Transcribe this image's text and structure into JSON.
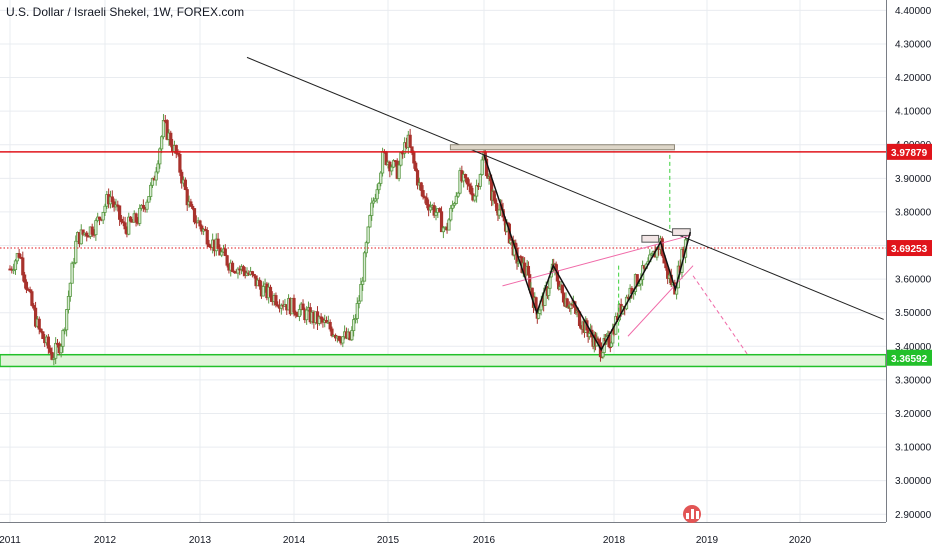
{
  "header": {
    "title": "U.S. Dollar / Israeli Shekel, 1W, FOREX.com"
  },
  "chart_data": {
    "type": "candlestick",
    "title": "U.S. Dollar / Israeli Shekel, 1W, FOREX.com",
    "x_ticks": [
      "2011",
      "2012",
      "2013",
      "2014",
      "2015",
      "2016",
      "2018",
      "2019",
      "2020"
    ],
    "y_ticks": [
      "2.90000",
      "3.00000",
      "3.10000",
      "3.20000",
      "3.30000",
      "3.40000",
      "3.50000",
      "3.60000",
      "3.70000",
      "3.80000",
      "3.90000",
      "4.00000",
      "4.10000",
      "4.20000",
      "4.30000",
      "4.40000"
    ],
    "ylim": [
      2.88,
      4.41
    ],
    "price_labels": [
      {
        "text": "3.97879",
        "value": 3.97879,
        "color": "#e0141b"
      },
      {
        "text": "3.69253",
        "value": 3.69253,
        "color": "#e0141b"
      },
      {
        "text": "3.36592",
        "value": 3.36592,
        "color": "#22c02a"
      }
    ],
    "price_path": [
      {
        "t": 2011.0,
        "v": 3.63
      },
      {
        "t": 2011.1,
        "v": 3.68
      },
      {
        "t": 2011.2,
        "v": 3.55
      },
      {
        "t": 2011.3,
        "v": 3.45
      },
      {
        "t": 2011.45,
        "v": 3.37
      },
      {
        "t": 2011.55,
        "v": 3.42
      },
      {
        "t": 2011.7,
        "v": 3.72
      },
      {
        "t": 2011.9,
        "v": 3.76
      },
      {
        "t": 2012.05,
        "v": 3.85
      },
      {
        "t": 2012.2,
        "v": 3.75
      },
      {
        "t": 2012.35,
        "v": 3.78
      },
      {
        "t": 2012.5,
        "v": 3.88
      },
      {
        "t": 2012.62,
        "v": 4.06
      },
      {
        "t": 2012.75,
        "v": 3.97
      },
      {
        "t": 2012.9,
        "v": 3.8
      },
      {
        "t": 2013.1,
        "v": 3.72
      },
      {
        "t": 2013.3,
        "v": 3.65
      },
      {
        "t": 2013.5,
        "v": 3.62
      },
      {
        "t": 2013.7,
        "v": 3.56
      },
      {
        "t": 2013.9,
        "v": 3.53
      },
      {
        "t": 2014.1,
        "v": 3.5
      },
      {
        "t": 2014.3,
        "v": 3.47
      },
      {
        "t": 2014.5,
        "v": 3.43
      },
      {
        "t": 2014.6,
        "v": 3.42
      },
      {
        "t": 2014.7,
        "v": 3.55
      },
      {
        "t": 2014.82,
        "v": 3.8
      },
      {
        "t": 2014.95,
        "v": 3.97
      },
      {
        "t": 2015.1,
        "v": 3.92
      },
      {
        "t": 2015.2,
        "v": 4.02
      },
      {
        "t": 2015.35,
        "v": 3.85
      },
      {
        "t": 2015.5,
        "v": 3.8
      },
      {
        "t": 2015.6,
        "v": 3.74
      },
      {
        "t": 2015.75,
        "v": 3.9
      },
      {
        "t": 2015.9,
        "v": 3.85
      },
      {
        "t": 2016.0,
        "v": 3.97
      },
      {
        "t": 2016.12,
        "v": 3.85
      },
      {
        "t": 2016.3,
        "v": 3.78
      },
      {
        "t": 2016.5,
        "v": 3.66
      },
      {
        "t": 2016.65,
        "v": 3.62
      },
      {
        "t": 2016.8,
        "v": 3.5
      },
      {
        "t": 2016.95,
        "v": 3.56
      },
      {
        "t": 2017.05,
        "v": 3.64
      },
      {
        "t": 2017.2,
        "v": 3.55
      },
      {
        "t": 2017.35,
        "v": 3.52
      },
      {
        "t": 2017.5,
        "v": 3.47
      },
      {
        "t": 2017.65,
        "v": 3.43
      },
      {
        "t": 2017.8,
        "v": 3.39
      },
      {
        "t": 2017.95,
        "v": 3.42
      },
      {
        "t": 2018.05,
        "v": 3.5
      },
      {
        "t": 2018.2,
        "v": 3.58
      },
      {
        "t": 2018.35,
        "v": 3.63
      },
      {
        "t": 2018.5,
        "v": 3.71
      },
      {
        "t": 2018.55,
        "v": 3.63
      },
      {
        "t": 2018.65,
        "v": 3.57
      },
      {
        "t": 2018.75,
        "v": 3.69
      },
      {
        "t": 2018.8,
        "v": 3.74
      }
    ],
    "drawings": {
      "downtrend": {
        "p1": {
          "t": 2013.5,
          "v": 4.26
        },
        "p2": {
          "t": 2020.9,
          "v": 3.48
        }
      },
      "resistance_line": {
        "v": 3.97879,
        "color": "#e0141b"
      },
      "support_zone": {
        "v_low": 3.34,
        "v_high": 3.375,
        "color": "#22c02a"
      },
      "pivot_dotted": {
        "v": 3.69253,
        "color": "#e0141b"
      },
      "top_rect": {
        "t1": 2015.65,
        "t2": 2018.65,
        "v_low": 3.985,
        "v_high": 4.0
      },
      "small_rect_1": {
        "t1": 2018.3,
        "t2": 2018.48,
        "v_low": 3.71,
        "v_high": 3.73
      },
      "small_rect_2": {
        "t1": 2018.63,
        "t2": 2018.82,
        "v_low": 3.73,
        "v_high": 3.75
      },
      "green_dash_1": {
        "t": 2018.6,
        "v_low": 3.74,
        "v_high": 3.97
      },
      "green_dash_2": {
        "t": 2018.05,
        "v_low": 3.4,
        "v_high": 3.64
      },
      "pink_channel_top": {
        "p1": {
          "t": 2016.28,
          "v": 3.58
        },
        "p2": {
          "t": 2018.82,
          "v": 3.73
        }
      },
      "pink_channel_bottom": {
        "p1": {
          "t": 2018.15,
          "v": 3.43
        },
        "p2": {
          "t": 2018.85,
          "v": 3.64
        }
      },
      "pink_projection": {
        "p1": {
          "t": 2018.85,
          "v": 3.61
        },
        "p2": {
          "t": 2019.45,
          "v": 3.37
        }
      },
      "black_zigzag": [
        {
          "t": 2016.0,
          "v": 3.97
        },
        {
          "t": 2016.8,
          "v": 3.5
        },
        {
          "t": 2017.05,
          "v": 3.64
        },
        {
          "t": 2017.8,
          "v": 3.39
        },
        {
          "t": 2018.5,
          "v": 3.71
        },
        {
          "t": 2018.66,
          "v": 3.57
        },
        {
          "t": 2018.82,
          "v": 3.74
        }
      ]
    },
    "colors": {
      "up": "#5b9a46",
      "down": "#a8322d",
      "grid": "#e9ecf0",
      "axis_text": "#131722"
    }
  }
}
